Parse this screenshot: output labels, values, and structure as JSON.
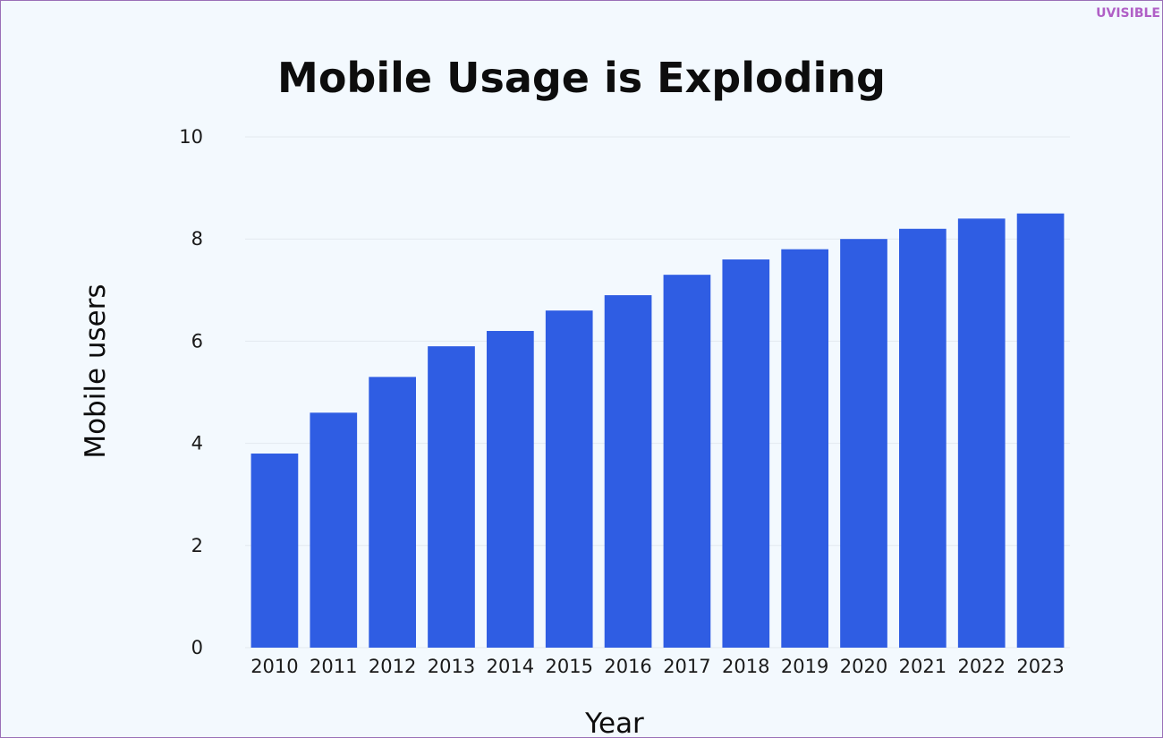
{
  "brand": "UVISIBLE",
  "colors": {
    "bar": "#2f5de3",
    "grid": "#e3e9ef",
    "background": "#f3f9fe",
    "frame": "#9a6fb8",
    "brand": "#b05fc6"
  },
  "chart_data": {
    "type": "bar",
    "title": "Mobile Usage is Exploding",
    "xlabel": "Year",
    "ylabel": "Mobile users",
    "categories": [
      "2010",
      "2011",
      "2012",
      "2013",
      "2014",
      "2015",
      "2016",
      "2017",
      "2018",
      "2019",
      "2020",
      "2021",
      "2022",
      "2023"
    ],
    "values": [
      3.8,
      4.6,
      5.3,
      5.9,
      6.2,
      6.6,
      6.9,
      7.3,
      7.6,
      7.8,
      8.0,
      8.2,
      8.4,
      8.5
    ],
    "ylim": [
      0,
      10
    ],
    "yticks": [
      "0",
      "2",
      "4",
      "6",
      "8",
      "10"
    ],
    "grid": true,
    "legend": "none"
  }
}
